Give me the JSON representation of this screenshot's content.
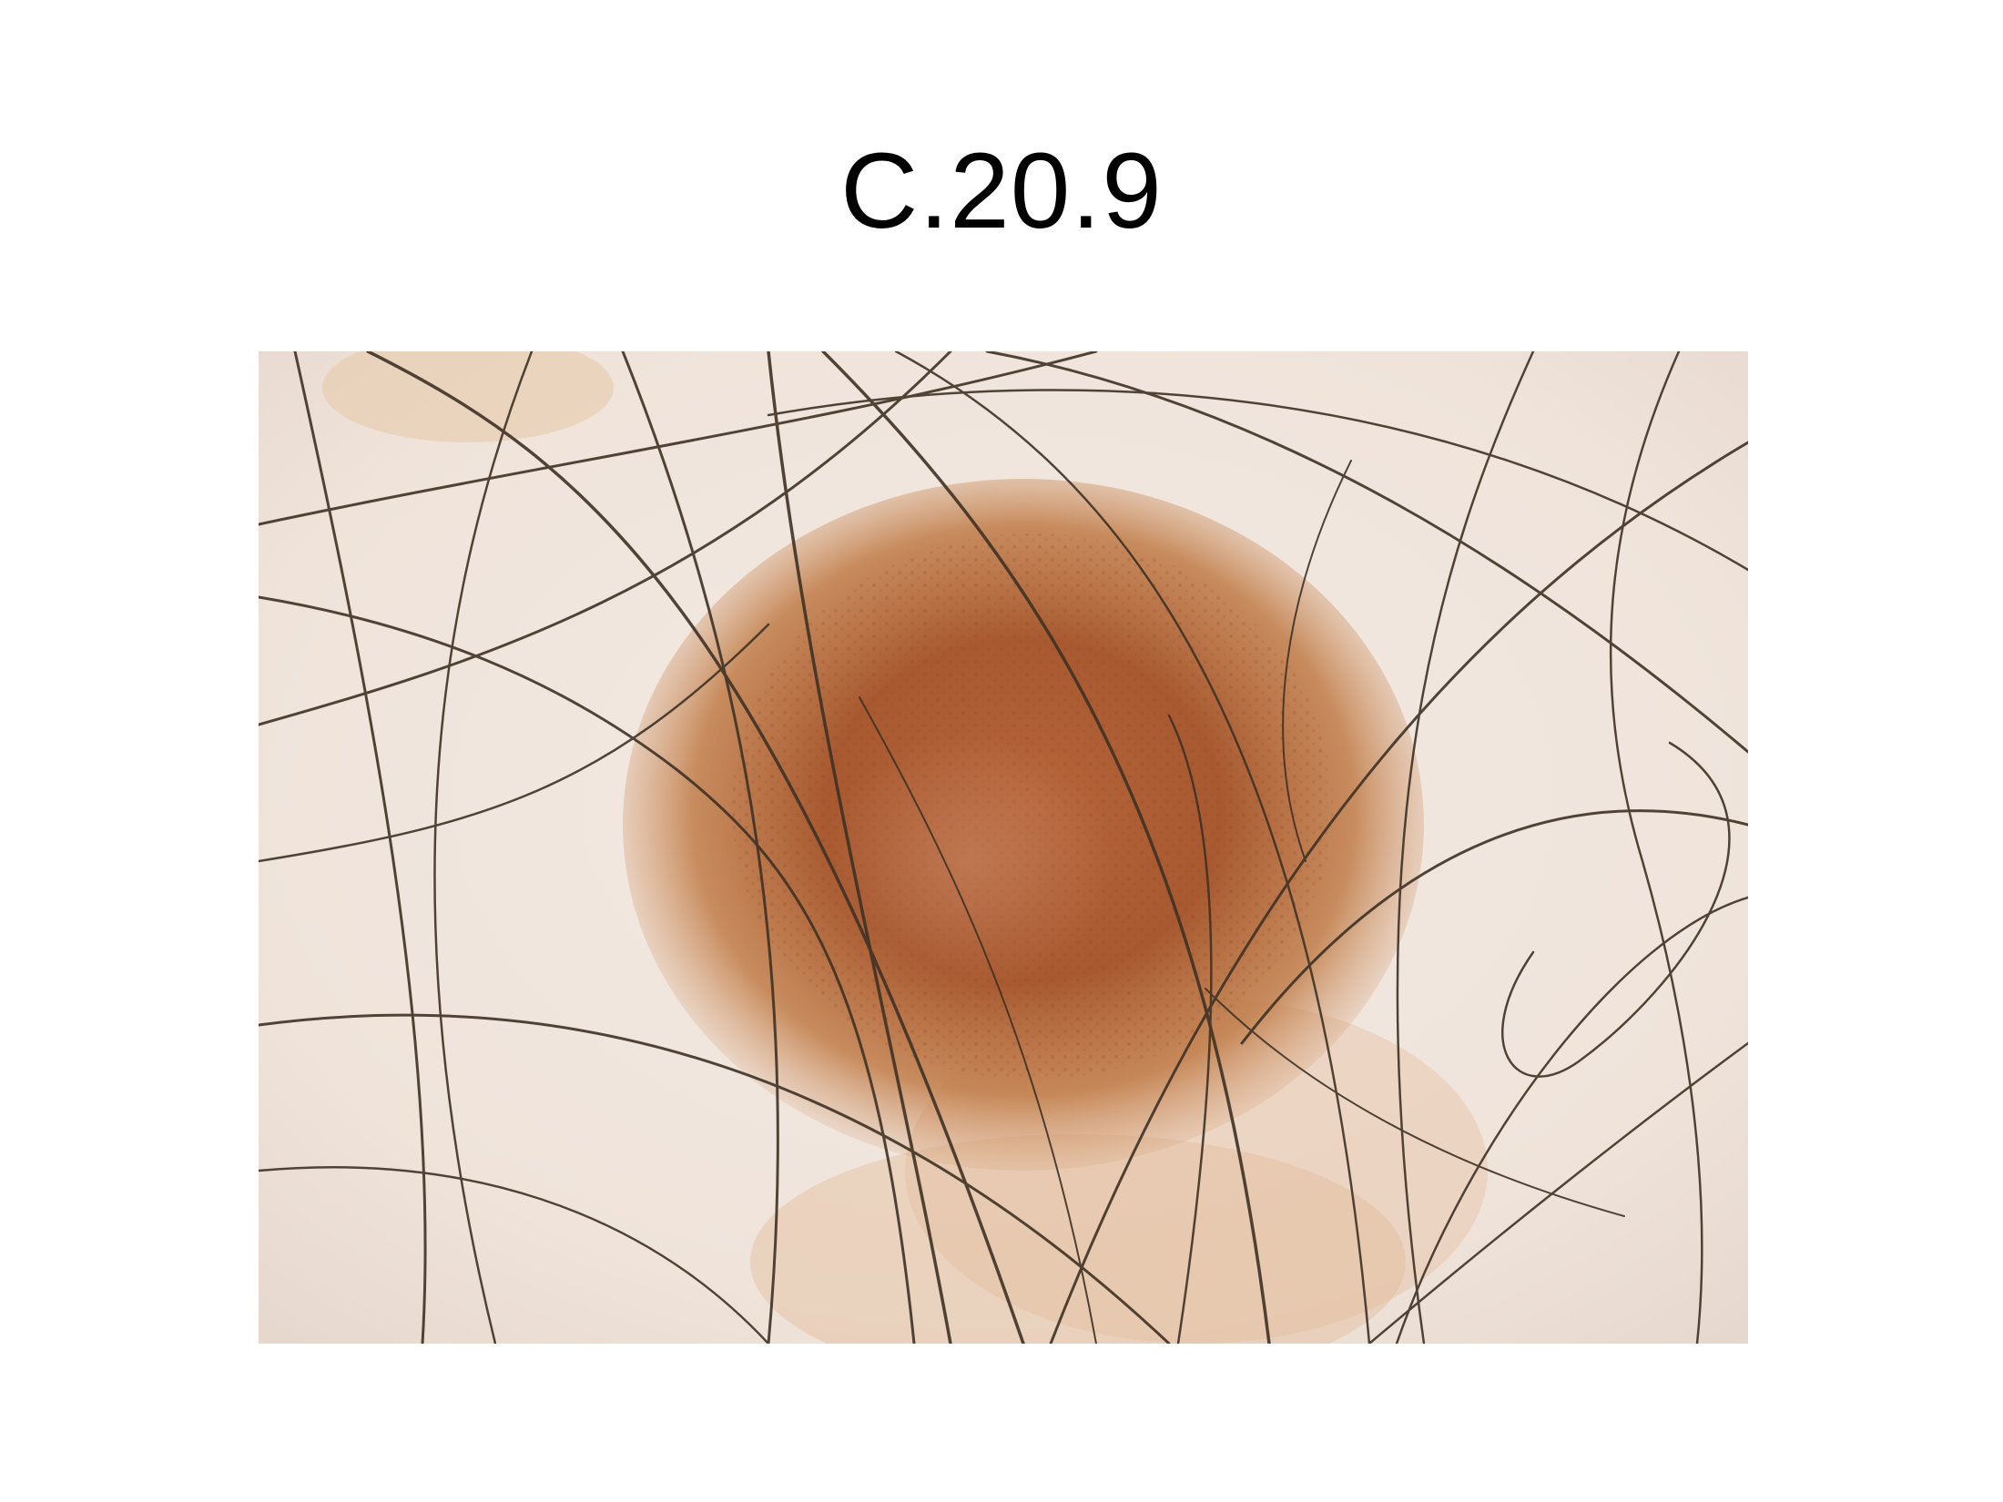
{
  "slide": {
    "title": "C.20.9"
  },
  "image": {
    "subject": "dermoscopy-photo",
    "colors": {
      "skin": "#efe5dc",
      "skin_shadow": "#dfc8bc",
      "lesion_outer": "#c9874f",
      "lesion_core": "#a7552f",
      "hair": "#3f3225"
    }
  }
}
